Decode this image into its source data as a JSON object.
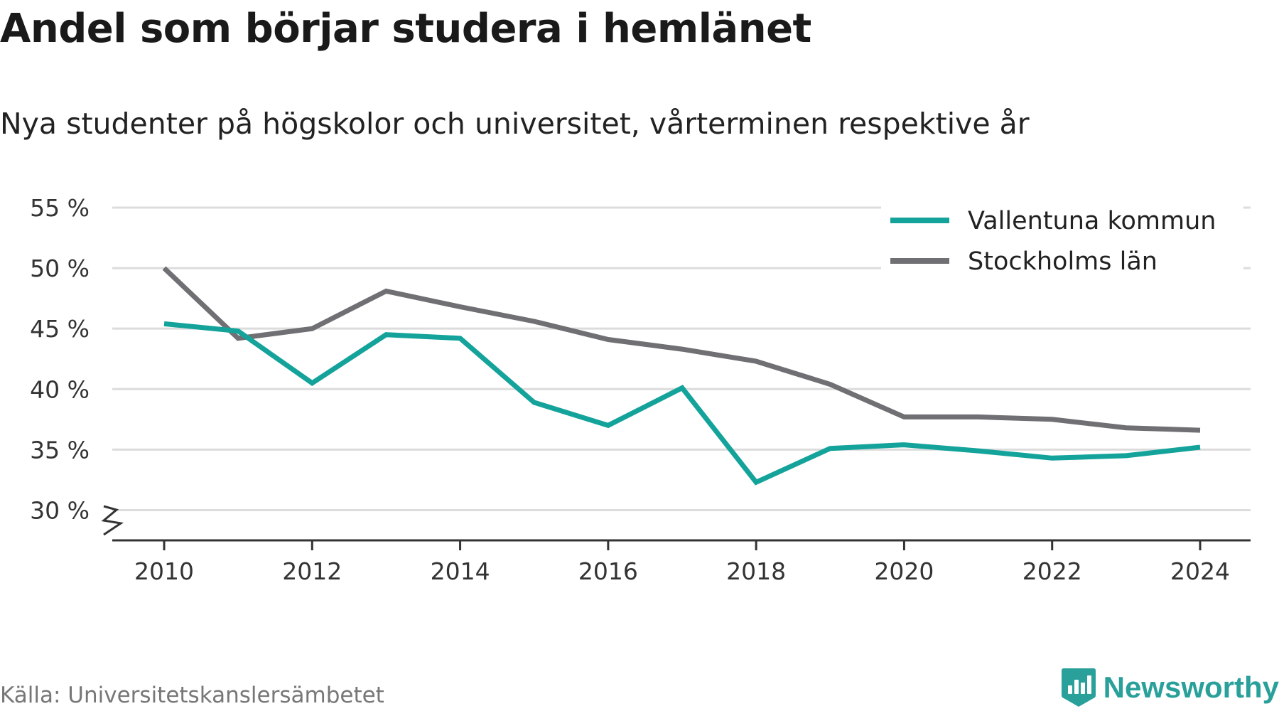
{
  "title": "Andel som börjar studera i hemlänet",
  "subtitle": "Nya studenter på högskolor och universitet, vårterminen respektive år",
  "source": "Källa: Universitetskanslersämbetet",
  "brand": "Newsworthy",
  "colors": {
    "vallentuna": "#14a39b",
    "stockholm": "#707074",
    "grid": "#dcdcdc",
    "axis": "#333333",
    "brand": "#2aa09b"
  },
  "chart_data": {
    "type": "line",
    "x": [
      2010,
      2011,
      2012,
      2013,
      2014,
      2015,
      2016,
      2017,
      2018,
      2019,
      2020,
      2021,
      2022,
      2023,
      2024
    ],
    "series": [
      {
        "name": "Vallentuna kommun",
        "values": [
          45.4,
          44.8,
          40.5,
          44.5,
          44.2,
          38.9,
          37.0,
          40.1,
          32.3,
          35.1,
          35.4,
          34.9,
          34.3,
          34.5,
          35.2
        ]
      },
      {
        "name": "Stockholms län",
        "values": [
          50.0,
          44.2,
          45.0,
          48.1,
          46.8,
          45.6,
          44.1,
          43.3,
          42.3,
          40.4,
          37.7,
          37.7,
          37.5,
          36.8,
          36.6
        ]
      }
    ],
    "ylim": [
      27.5,
      55
    ],
    "y_ticks": [
      30,
      35,
      40,
      45,
      50,
      55
    ],
    "y_tick_labels": [
      "30 %",
      "35 %",
      "40 %",
      "45 %",
      "50 %",
      "55 %"
    ],
    "x_ticks": [
      2010,
      2012,
      2014,
      2016,
      2018,
      2020,
      2022,
      2024
    ],
    "x_tick_labels": [
      "2010",
      "2012",
      "2014",
      "2016",
      "2018",
      "2020",
      "2022",
      "2024"
    ],
    "xlabel": "",
    "ylabel": "",
    "grid": true,
    "y_axis_break": true,
    "legend_position": "top-right"
  }
}
